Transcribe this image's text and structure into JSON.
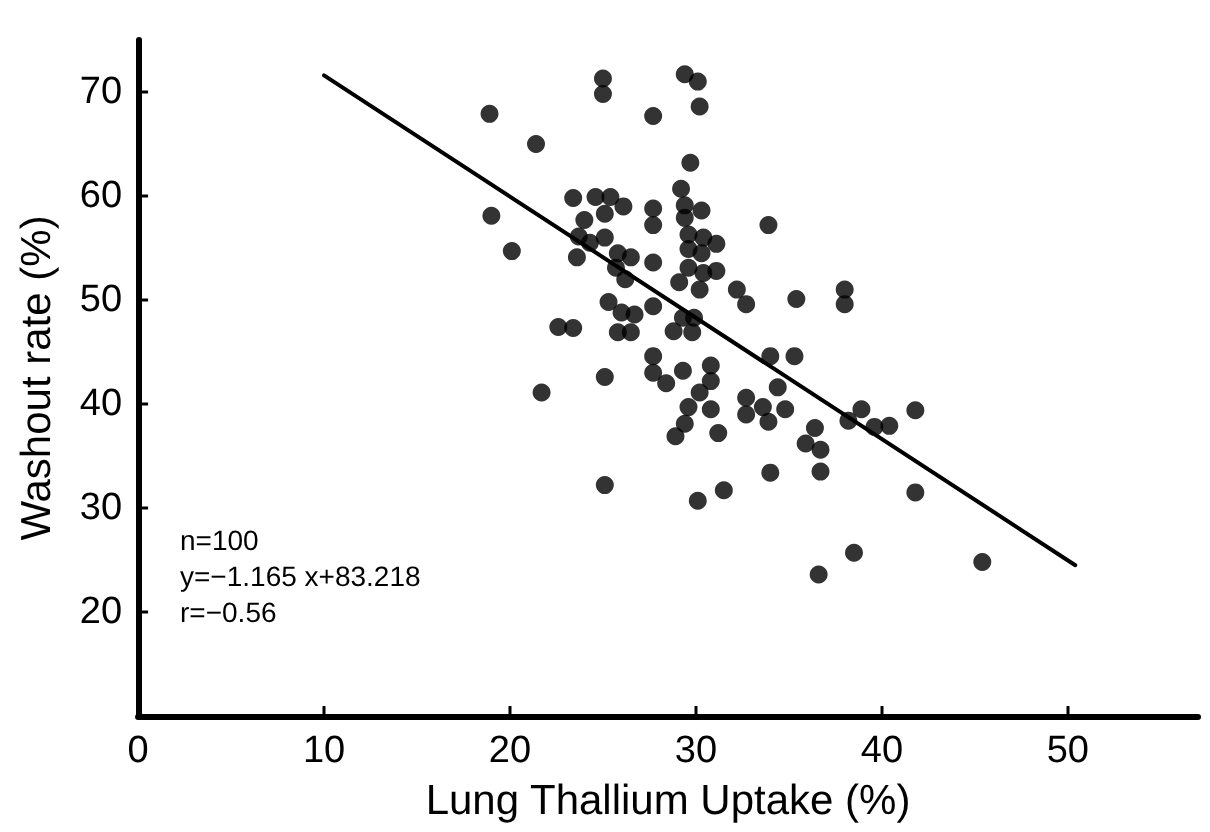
{
  "chart_data": {
    "type": "scatter",
    "xlabel": "Lung Thallium Uptake (%)",
    "ylabel": "Washout rate (%)",
    "xlim": [
      0,
      57
    ],
    "xticks": [
      0,
      10,
      20,
      30,
      40,
      50
    ],
    "ylim": [
      10,
      75
    ],
    "yticks": [
      20,
      30,
      40,
      50,
      60,
      70
    ],
    "marker": "circle",
    "annotations": [
      "n=100",
      "y=−1.165 x+83.218",
      "r=−0.56"
    ],
    "series": [
      {
        "color": "#000000",
        "x": [
          18.9,
          21.4,
          19.0,
          20.1,
          22.6,
          21.7,
          25.0,
          25.0,
          29.4,
          30.1,
          27.7,
          30.2,
          29.7,
          29.2,
          23.4,
          24.6,
          25.4,
          26.1,
          27.7,
          29.4,
          30.3,
          24.0,
          25.1,
          27.7,
          29.4,
          29.6,
          30.4,
          31.1,
          33.9,
          23.7,
          24.3,
          25.1,
          23.6,
          25.8,
          26.5,
          27.7,
          29.6,
          30.3,
          29.6,
          30.4,
          31.1,
          25.7,
          26.2,
          29.1,
          30.2,
          32.2,
          32.7,
          35.4,
          38.0,
          38.0,
          25.3,
          27.7,
          23.4,
          26.0,
          26.7,
          25.8,
          26.5,
          28.8,
          29.3,
          29.9,
          29.8,
          25.1,
          27.7,
          27.7,
          28.4,
          29.3,
          30.8,
          30.8,
          30.2,
          29.6,
          30.8,
          29.4,
          28.9,
          31.2,
          34.0,
          35.3,
          34.4,
          32.7,
          32.7,
          33.6,
          33.9,
          34.8,
          36.4,
          35.9,
          36.7,
          36.7,
          34.0,
          38.2,
          38.9,
          39.6,
          40.4,
          41.8,
          41.8,
          25.1,
          30.1,
          31.5,
          38.5,
          36.6,
          45.4
        ],
        "values": [
          67.9,
          65.0,
          58.1,
          54.7,
          47.4,
          41.1,
          71.3,
          69.8,
          71.7,
          71.0,
          67.7,
          68.6,
          63.2,
          60.7,
          59.8,
          59.9,
          59.9,
          59.0,
          58.8,
          59.1,
          58.6,
          57.7,
          58.3,
          57.2,
          57.9,
          56.3,
          56.0,
          55.4,
          57.2,
          56.1,
          55.5,
          56.0,
          54.1,
          54.5,
          54.1,
          53.6,
          54.9,
          54.5,
          53.1,
          52.6,
          52.8,
          53.1,
          52.0,
          51.7,
          51.0,
          51.0,
          49.6,
          50.1,
          51.0,
          49.6,
          49.8,
          49.4,
          47.3,
          48.8,
          48.6,
          46.9,
          46.9,
          47.0,
          48.3,
          48.3,
          46.9,
          42.6,
          44.6,
          43.0,
          42.0,
          43.2,
          43.7,
          42.2,
          41.1,
          39.7,
          39.5,
          38.1,
          36.9,
          37.2,
          44.6,
          44.6,
          41.6,
          40.6,
          39.0,
          39.7,
          38.3,
          39.5,
          37.7,
          36.2,
          35.6,
          33.5,
          33.4,
          38.4,
          39.5,
          37.8,
          37.9,
          39.4,
          31.5,
          32.2,
          30.7,
          31.7,
          25.7,
          23.6,
          24.8
        ]
      },
      {
        "type": "line",
        "color": "#000000",
        "marker": "none",
        "x": [
          10,
          50.4
        ],
        "values": [
          71.6,
          24.5
        ]
      }
    ]
  }
}
